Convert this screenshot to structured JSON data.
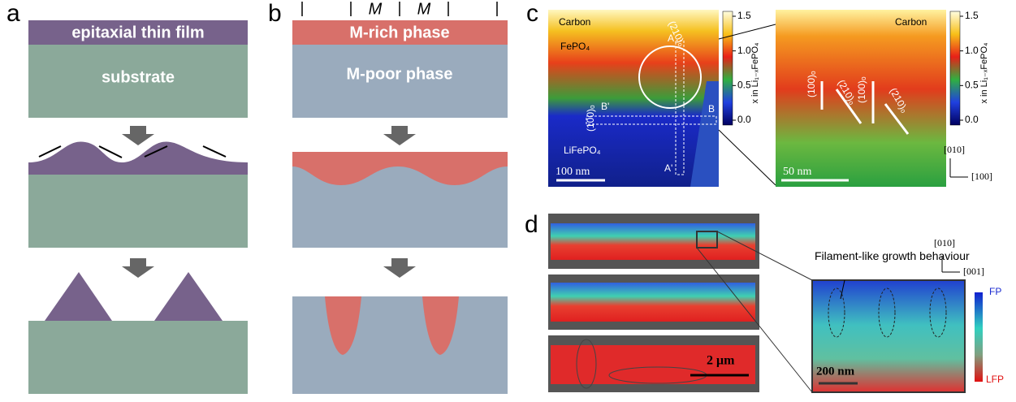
{
  "panel_a": {
    "label": "a",
    "film": "epitaxial thin film",
    "substrate": "substrate"
  },
  "panel_b": {
    "label": "b",
    "m_labels": [
      "M",
      "M"
    ],
    "rich": "M-rich phase",
    "poor": "M-poor phase"
  },
  "panel_c": {
    "label": "c",
    "left": {
      "carbon": "Carbon",
      "fepo4": "FePO₄",
      "lifepo4": "LiFePO₄",
      "scale": "100 nm",
      "a": "A",
      "a_prime": "A'",
      "b": "B",
      "b_prime": "B'",
      "plane_210": "(210)ₒ",
      "plane_100": "(100)ₒ"
    },
    "right": {
      "carbon": "Carbon",
      "scale": "50 nm",
      "planes": [
        "(100)ₒ",
        "(210)ₒ",
        "(100)ₒ",
        "(210)ₒ"
      ],
      "axis_up": "[010]",
      "axis_right": "[100]"
    },
    "colorbar_label": "x in Li₁₋ₓFePO₄",
    "colorbar_ticks": [
      "1.5",
      "1.0",
      "0.5",
      "0.0"
    ]
  },
  "panel_d": {
    "label": "d",
    "scale_large": "2 μm",
    "annotation": "Filament-like growth behaviour",
    "axis_up": "[010]",
    "axis_right": "[001]",
    "scale_small": "200 nm",
    "colorbar_top": "FP",
    "colorbar_bottom": "LFP"
  }
}
